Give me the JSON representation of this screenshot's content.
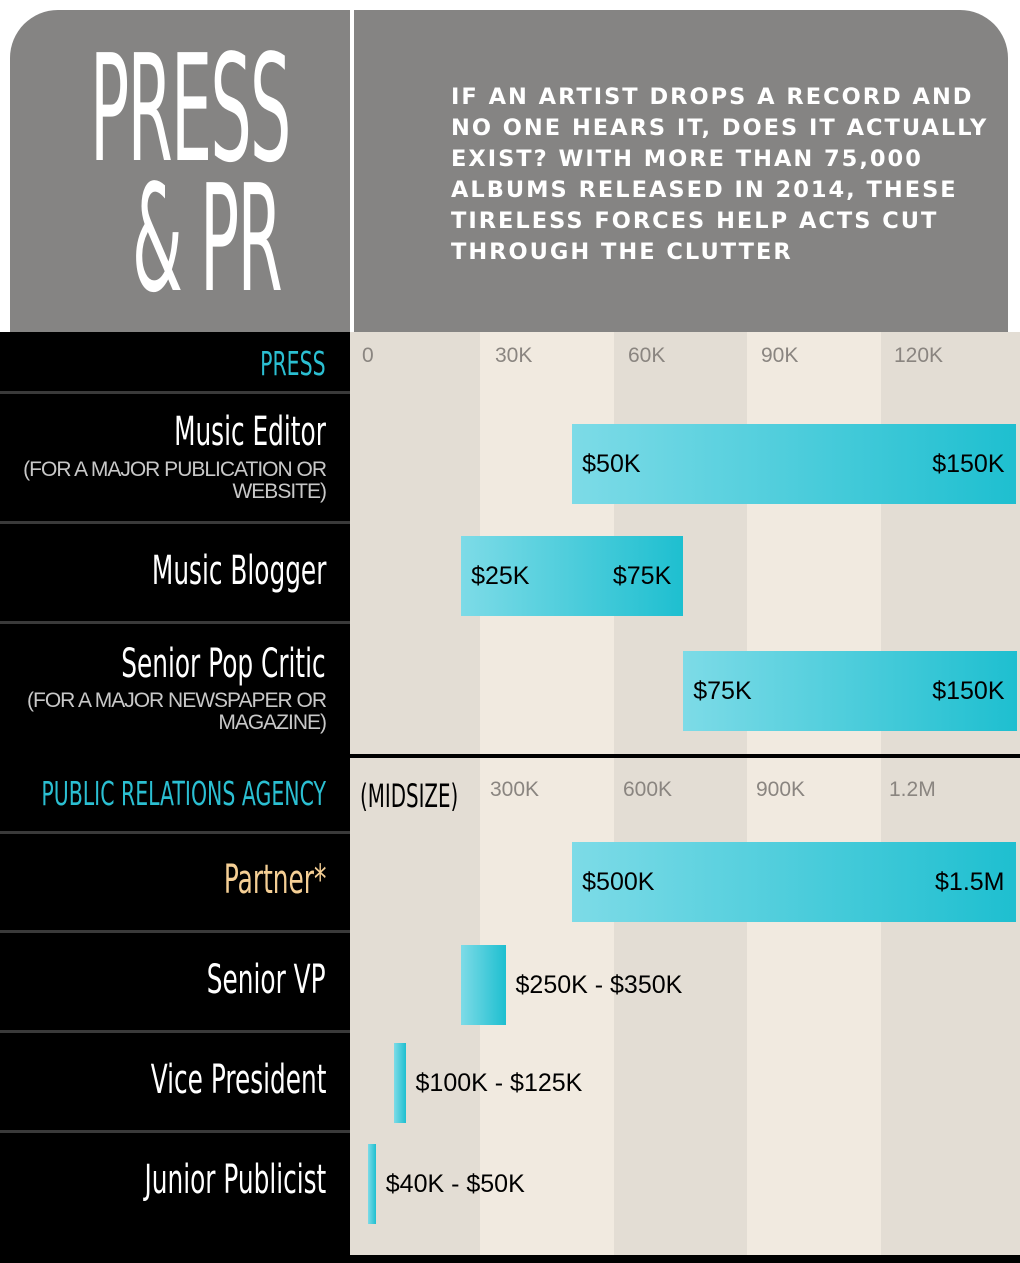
{
  "header": {
    "title_line1": "PRESS",
    "title_line2": "& PR",
    "intro": "IF AN ARTIST DROPS A RECORD AND NO ONE HEARS IT, DOES IT ACTUALLY EXIST? WITH MORE THAN 75,000 ALBUMS RELEASED IN 2014, THESE TIRELESS FORCES HELP ACTS CUT THROUGH THE CLUTTER"
  },
  "colors": {
    "header_bg": "#858483",
    "accent": "#2bbfd2",
    "bar_light": "#7ddbe7",
    "bar_dark": "#1ebfd0",
    "partner": "#f5cf95"
  },
  "chart_data": [
    {
      "type": "bar",
      "orientation": "horizontal-range",
      "section_label": "PRESS",
      "scale_note": "",
      "x_ticks": [
        "0",
        "30K",
        "60K",
        "90K",
        "120K"
      ],
      "xlim": [
        0,
        150000
      ],
      "grid": "alternating vertical bands",
      "rows": [
        {
          "label": "Music Editor",
          "sub": "(FOR A MAJOR PUBLICATION OR WEBSITE)",
          "min": 50000,
          "max": 150000,
          "min_label": "$50K",
          "max_label": "$150K",
          "range_label": ""
        },
        {
          "label": "Music Blogger",
          "sub": "",
          "min": 25000,
          "max": 75000,
          "min_label": "$25K",
          "max_label": "$75K",
          "range_label": ""
        },
        {
          "label": "Senior Pop Critic",
          "sub": "(FOR A MAJOR NEWSPAPER OR MAGAZINE)",
          "min": 75000,
          "max": 150000,
          "min_label": "$75K",
          "max_label": "$150K",
          "range_label": ""
        }
      ]
    },
    {
      "type": "bar",
      "orientation": "horizontal-range",
      "section_label": "PUBLIC RELATIONS AGENCY",
      "scale_note": "(MIDSIZE)",
      "x_ticks": [
        "300K",
        "600K",
        "900K",
        "1.2M"
      ],
      "xlim": [
        0,
        1500000
      ],
      "grid": "alternating vertical bands",
      "rows": [
        {
          "label": "Partner*",
          "sub": "",
          "min": 500000,
          "max": 1500000,
          "min_label": "$500K",
          "max_label": "$1.5M",
          "range_label": ""
        },
        {
          "label": "Senior VP",
          "sub": "",
          "min": 250000,
          "max": 350000,
          "min_label": "",
          "max_label": "",
          "range_label": "$250K - $350K"
        },
        {
          "label": "Vice President",
          "sub": "",
          "min": 100000,
          "max": 125000,
          "min_label": "",
          "max_label": "",
          "range_label": "$100K - $125K"
        },
        {
          "label": "Junior Publicist",
          "sub": "",
          "min": 40000,
          "max": 50000,
          "min_label": "",
          "max_label": "",
          "range_label": "$40K - $50K"
        }
      ]
    }
  ]
}
